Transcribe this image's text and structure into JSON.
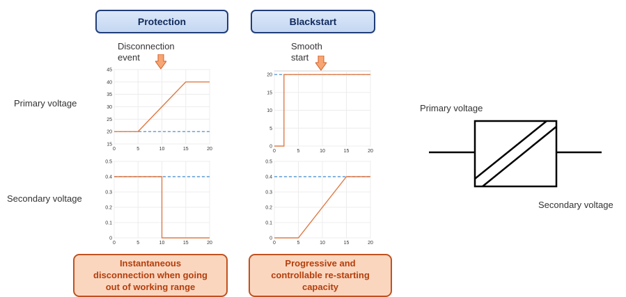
{
  "headers": {
    "protection": "Protection",
    "blackstart": "Blackstart"
  },
  "annotations": {
    "disconnection": [
      "Disconnection",
      "event"
    ],
    "smooth": [
      "Smooth",
      "start"
    ]
  },
  "row_labels": {
    "primary": "Primary voltage",
    "secondary": "Secondary voltage"
  },
  "footers": {
    "protection": [
      "Instantaneous",
      "disconnection when going",
      "out of working range"
    ],
    "blackstart": [
      "Progressive and",
      "controllable re-starting",
      "capacity"
    ]
  },
  "symbol": {
    "primary_label": "Primary voltage",
    "secondary_label": "Secondary voltage"
  },
  "colors": {
    "header_fill": "#c9dbf3",
    "header_border": "#1f3d78",
    "footer_fill": "#fbd6bf",
    "footer_border": "#c0511e",
    "signal": "#e07a45",
    "reference": "#5b9bd5",
    "arrow_fill": "#f7a572",
    "arrow_stroke": "#d0602a"
  },
  "chart_data": [
    {
      "type": "line",
      "title": "",
      "xlim": [
        0,
        20
      ],
      "ylim": [
        15,
        45
      ],
      "xticks": [
        0,
        5,
        10,
        15,
        20
      ],
      "yticks": [
        15,
        20,
        25,
        30,
        35,
        40,
        45
      ],
      "grid": true,
      "series": [
        {
          "style": "solid",
          "color": "#e07a45",
          "x": [
            0,
            5,
            15,
            20
          ],
          "y": [
            20,
            20,
            40,
            40
          ]
        },
        {
          "style": "dashed",
          "color": "#5b9bd5",
          "x": [
            0,
            20
          ],
          "y": [
            20,
            20
          ]
        }
      ]
    },
    {
      "type": "line",
      "title": "",
      "xlim": [
        0,
        20
      ],
      "ylim": [
        0,
        0.5
      ],
      "xticks": [
        0,
        5,
        10,
        15,
        20
      ],
      "yticks": [
        0,
        0.1,
        0.2,
        0.3,
        0.4,
        0.5
      ],
      "grid": true,
      "series": [
        {
          "style": "solid",
          "color": "#e07a45",
          "x": [
            0,
            10,
            10,
            20
          ],
          "y": [
            0.4,
            0.4,
            0,
            0
          ]
        },
        {
          "style": "dashed",
          "color": "#5b9bd5",
          "x": [
            0,
            20
          ],
          "y": [
            0.4,
            0.4
          ]
        }
      ]
    },
    {
      "type": "line",
      "title": "",
      "xlim": [
        0,
        20
      ],
      "ylim": [
        0,
        21
      ],
      "xticks": [
        0,
        5,
        10,
        15,
        20
      ],
      "yticks": [
        0,
        5,
        10,
        15,
        20
      ],
      "grid": true,
      "series": [
        {
          "style": "solid",
          "color": "#e07a45",
          "x": [
            0,
            2,
            2,
            20
          ],
          "y": [
            0,
            0,
            20,
            20
          ]
        },
        {
          "style": "dashed",
          "color": "#5b9bd5",
          "x": [
            0,
            20
          ],
          "y": [
            20,
            20
          ]
        }
      ]
    },
    {
      "type": "line",
      "title": "",
      "xlim": [
        0,
        20
      ],
      "ylim": [
        0,
        0.5
      ],
      "xticks": [
        0,
        5,
        10,
        15,
        20
      ],
      "yticks": [
        0,
        0.1,
        0.2,
        0.3,
        0.4,
        0.5
      ],
      "grid": true,
      "series": [
        {
          "style": "solid",
          "color": "#e07a45",
          "x": [
            0,
            5,
            15,
            20
          ],
          "y": [
            0,
            0,
            0.4,
            0.4
          ]
        },
        {
          "style": "dashed",
          "color": "#5b9bd5",
          "x": [
            0,
            20
          ],
          "y": [
            0.4,
            0.4
          ]
        }
      ]
    }
  ]
}
